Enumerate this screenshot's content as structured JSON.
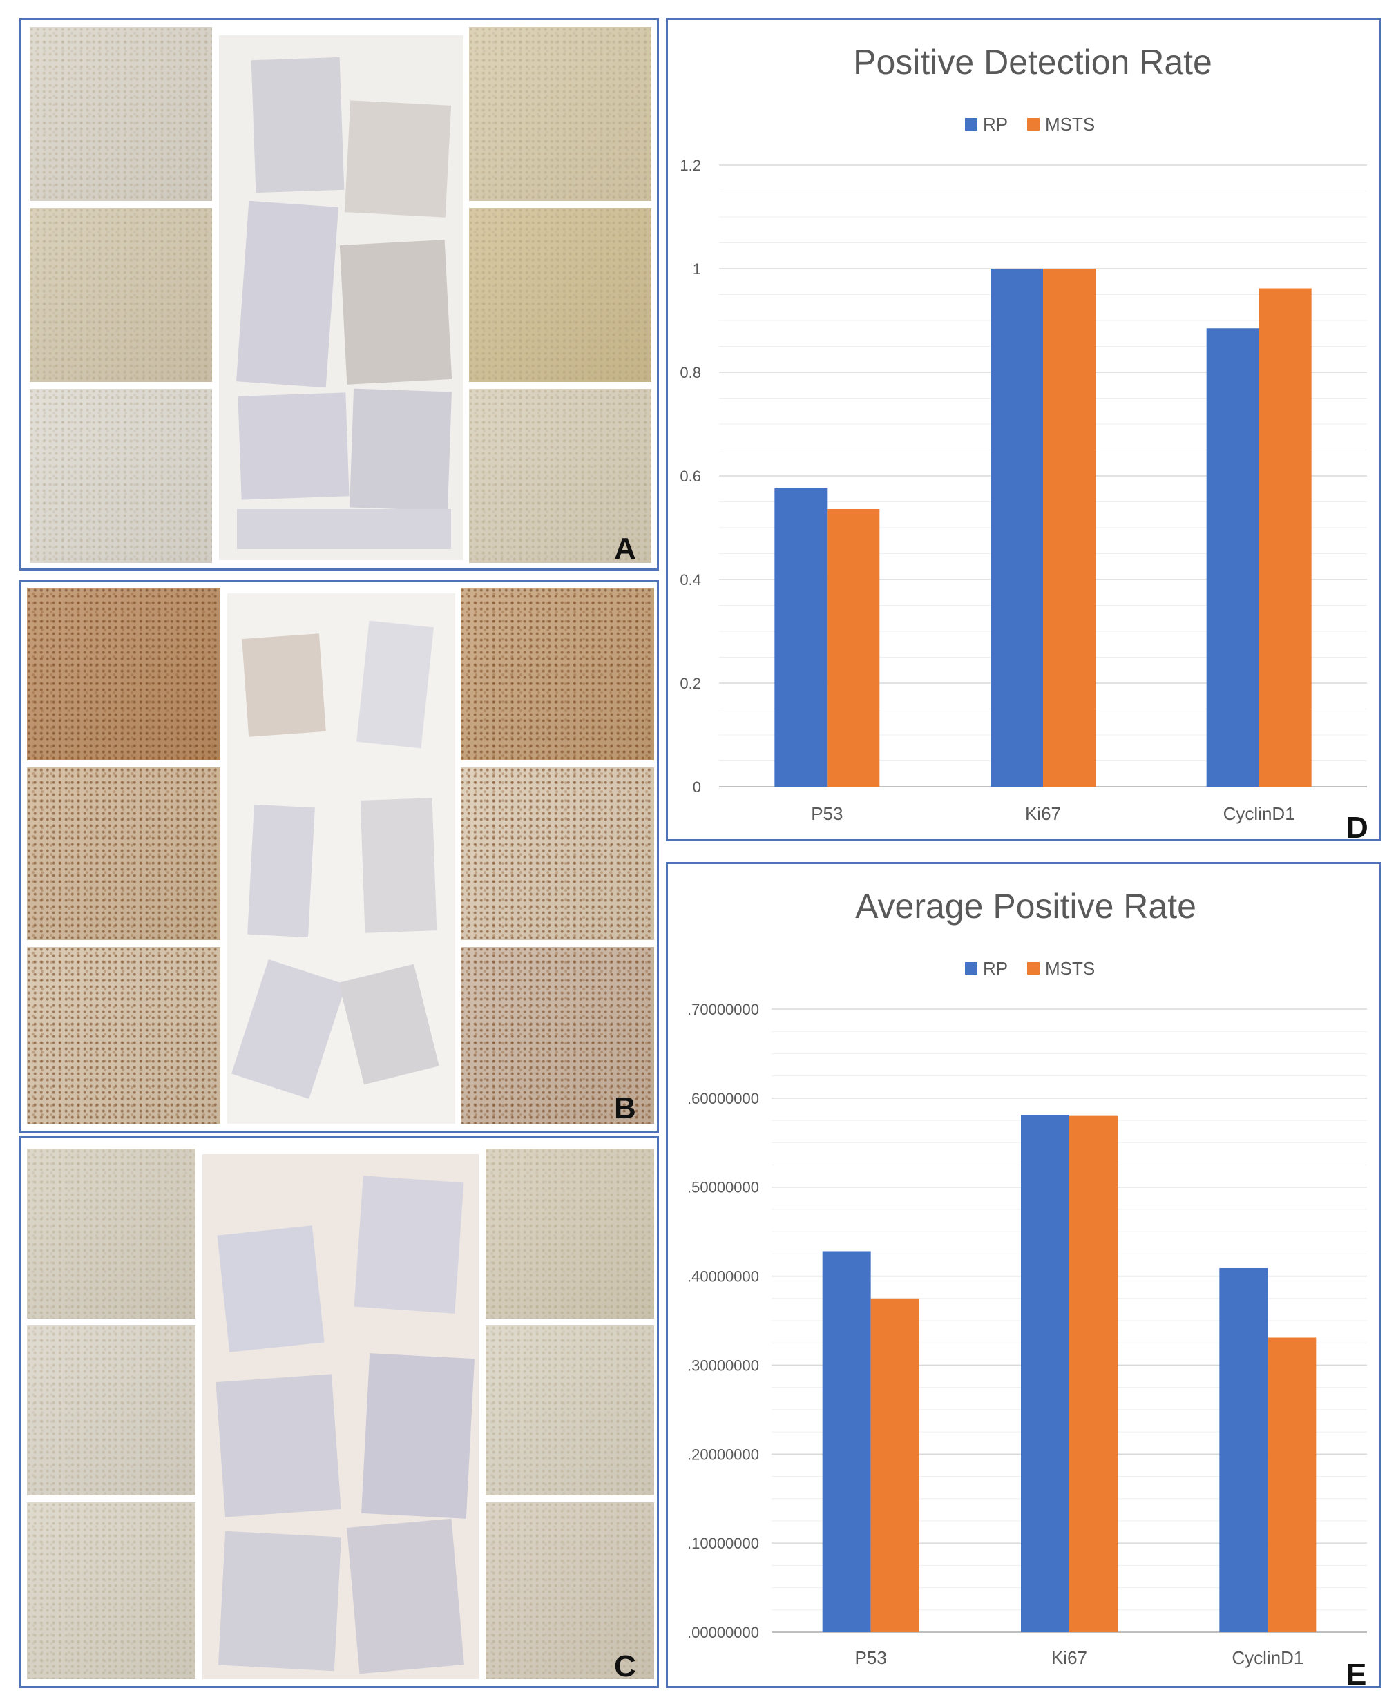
{
  "figure": {
    "panel_labels": [
      "A",
      "B",
      "C",
      "D",
      "E"
    ],
    "micrograph_panels": [
      {
        "label": "A",
        "stain": "light",
        "tile_colors": [
          "#d9d3c7",
          "#d2c7ad",
          "#dcd8cf",
          "#d6c9a8",
          "#cfbd90",
          "#d6cdb6"
        ]
      },
      {
        "label": "B",
        "stain": "heavy",
        "tile_colors": [
          "#b98a5f",
          "#cdb394",
          "#d3bfa5",
          "#c39d74",
          "#d8c6ae",
          "#c7b09b"
        ]
      },
      {
        "label": "C",
        "stain": "light",
        "tile_colors": [
          "#d6cfbf",
          "#d9d3c6",
          "#d8d2c3",
          "#d4cbb5",
          "#d8d1c0",
          "#d3cab8"
        ]
      }
    ]
  },
  "chart_data": [
    {
      "panel": "D",
      "type": "bar",
      "title": "Positive Detection Rate",
      "categories": [
        "P53",
        "Ki67",
        "CyclinD1"
      ],
      "series": [
        {
          "name": "RP",
          "color": "#4472c4",
          "values": [
            0.576,
            1.0,
            0.885
          ]
        },
        {
          "name": "MSTS",
          "color": "#ed7d31",
          "values": [
            0.536,
            1.0,
            0.962
          ]
        }
      ],
      "yticks": [
        "0",
        "0.2",
        "0.4",
        "0.6",
        "0.8",
        "1",
        "1.2"
      ],
      "ylim": [
        0,
        1.2
      ],
      "legend": "top-center",
      "grid": true
    },
    {
      "panel": "E",
      "type": "bar",
      "title": "Average Positive Rate",
      "categories": [
        "P53",
        "Ki67",
        "CyclinD1"
      ],
      "series": [
        {
          "name": "RP",
          "color": "#4472c4",
          "values": [
            0.428,
            0.581,
            0.409
          ]
        },
        {
          "name": "MSTS",
          "color": "#ed7d31",
          "values": [
            0.375,
            0.58,
            0.331
          ]
        }
      ],
      "yticks": [
        ".00000000",
        ".10000000",
        ".20000000",
        ".30000000",
        ".40000000",
        ".50000000",
        ".60000000",
        ".70000000"
      ],
      "ylim": [
        0,
        0.7
      ],
      "legend": "top-center",
      "grid": true
    }
  ]
}
